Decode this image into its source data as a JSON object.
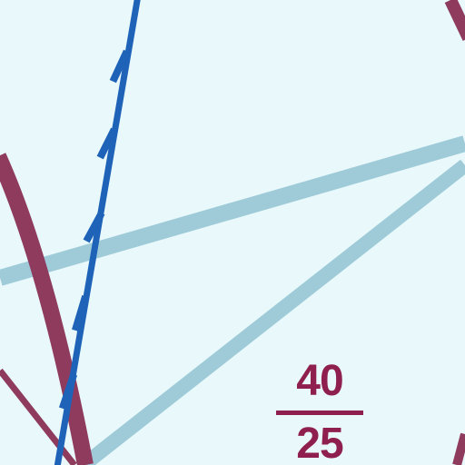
{
  "map": {
    "background_color": "#e9f9fb",
    "route_label": {
      "top_number": "40",
      "bottom_number": "25",
      "color": "#8e1f4e"
    },
    "features": {
      "railway_color": "#1e63b8",
      "road_light_color": "#9fcbd9",
      "road_dark_color": "#8e3b5e"
    }
  }
}
